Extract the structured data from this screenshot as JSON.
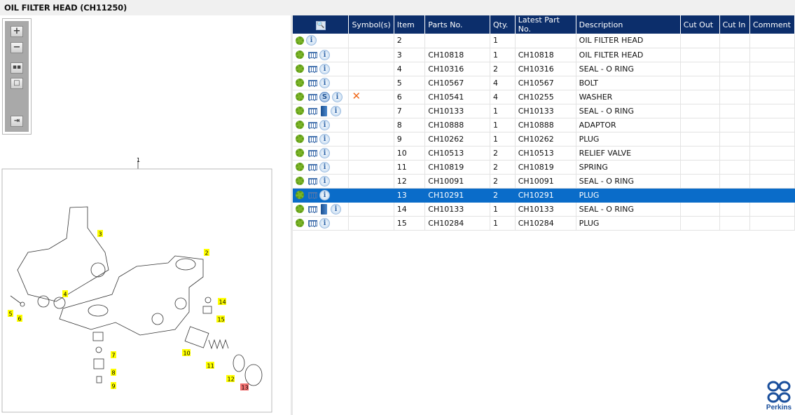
{
  "title": "OIL FILTER HEAD (CH11250)",
  "toolbar": {
    "buttons": [
      "zoom-in",
      "zoom-out",
      "fit-all",
      "fit-window",
      "export"
    ]
  },
  "diagram": {
    "assembly_label": "1",
    "callouts": [
      "2",
      "3",
      "4",
      "5",
      "6",
      "7",
      "8",
      "9",
      "10",
      "11",
      "12",
      "13",
      "14",
      "15"
    ],
    "highlighted": "13",
    "callout_color": "#ffff00",
    "highlight_color": "#f07070"
  },
  "table": {
    "columns": [
      "",
      "Symbol(s)",
      "Item",
      "Parts No.",
      "Qty.",
      "Latest Part No.",
      "Description",
      "Cut Out",
      "Cut In",
      "Comment"
    ],
    "header_color": "#0c2e6b",
    "selected_color": "#0a6cc9",
    "rows": [
      {
        "icons": [
          "gear",
          "info"
        ],
        "symbol": "",
        "item": "2",
        "part": "",
        "qty": "1",
        "latest": "",
        "desc": "OIL FILTER HEAD",
        "cut_out": "",
        "cut_in": "",
        "comment": ""
      },
      {
        "icons": [
          "gear",
          "cart",
          "info"
        ],
        "symbol": "",
        "item": "3",
        "part": "CH10818",
        "qty": "1",
        "latest": "CH10818",
        "desc": "OIL FILTER HEAD",
        "cut_out": "",
        "cut_in": "",
        "comment": ""
      },
      {
        "icons": [
          "gear",
          "cart",
          "info"
        ],
        "symbol": "",
        "item": "4",
        "part": "CH10316",
        "qty": "2",
        "latest": "CH10316",
        "desc": "SEAL - O RING",
        "cut_out": "",
        "cut_in": "",
        "comment": ""
      },
      {
        "icons": [
          "gear",
          "cart",
          "info"
        ],
        "symbol": "",
        "item": "5",
        "part": "CH10567",
        "qty": "4",
        "latest": "CH10567",
        "desc": "BOLT",
        "cut_out": "",
        "cut_in": "",
        "comment": ""
      },
      {
        "icons": [
          "gear",
          "cart",
          "s",
          "info"
        ],
        "symbol": "x",
        "item": "6",
        "part": "CH10541",
        "qty": "4",
        "latest": "CH10255",
        "desc": "WASHER",
        "cut_out": "",
        "cut_in": "",
        "comment": ""
      },
      {
        "icons": [
          "gear",
          "cart",
          "book",
          "info"
        ],
        "symbol": "",
        "item": "7",
        "part": "CH10133",
        "qty": "1",
        "latest": "CH10133",
        "desc": "SEAL - O RING",
        "cut_out": "",
        "cut_in": "",
        "comment": ""
      },
      {
        "icons": [
          "gear",
          "cart",
          "info"
        ],
        "symbol": "",
        "item": "8",
        "part": "CH10888",
        "qty": "1",
        "latest": "CH10888",
        "desc": "ADAPTOR",
        "cut_out": "",
        "cut_in": "",
        "comment": ""
      },
      {
        "icons": [
          "gear",
          "cart",
          "info"
        ],
        "symbol": "",
        "item": "9",
        "part": "CH10262",
        "qty": "1",
        "latest": "CH10262",
        "desc": "PLUG",
        "cut_out": "",
        "cut_in": "",
        "comment": ""
      },
      {
        "icons": [
          "gear",
          "cart",
          "info"
        ],
        "symbol": "",
        "item": "10",
        "part": "CH10513",
        "qty": "2",
        "latest": "CH10513",
        "desc": "RELIEF VALVE",
        "cut_out": "",
        "cut_in": "",
        "comment": ""
      },
      {
        "icons": [
          "gear",
          "cart",
          "info"
        ],
        "symbol": "",
        "item": "11",
        "part": "CH10819",
        "qty": "2",
        "latest": "CH10819",
        "desc": "SPRING",
        "cut_out": "",
        "cut_in": "",
        "comment": ""
      },
      {
        "icons": [
          "gear",
          "cart",
          "info"
        ],
        "symbol": "",
        "item": "12",
        "part": "CH10091",
        "qty": "2",
        "latest": "CH10091",
        "desc": "SEAL - O RING",
        "cut_out": "",
        "cut_in": "",
        "comment": ""
      },
      {
        "icons": [
          "gear",
          "cart",
          "info"
        ],
        "symbol": "",
        "item": "13",
        "part": "CH10291",
        "qty": "2",
        "latest": "CH10291",
        "desc": "PLUG",
        "cut_out": "",
        "cut_in": "",
        "comment": "",
        "selected": true
      },
      {
        "icons": [
          "gear",
          "cart",
          "book",
          "info"
        ],
        "symbol": "",
        "item": "14",
        "part": "CH10133",
        "qty": "1",
        "latest": "CH10133",
        "desc": "SEAL - O RING",
        "cut_out": "",
        "cut_in": "",
        "comment": ""
      },
      {
        "icons": [
          "gear",
          "cart",
          "info"
        ],
        "symbol": "",
        "item": "15",
        "part": "CH10284",
        "qty": "1",
        "latest": "CH10284",
        "desc": "PLUG",
        "cut_out": "",
        "cut_in": "",
        "comment": ""
      }
    ]
  },
  "logo": {
    "text": "Perkins",
    "color": "#1a4f9c"
  }
}
